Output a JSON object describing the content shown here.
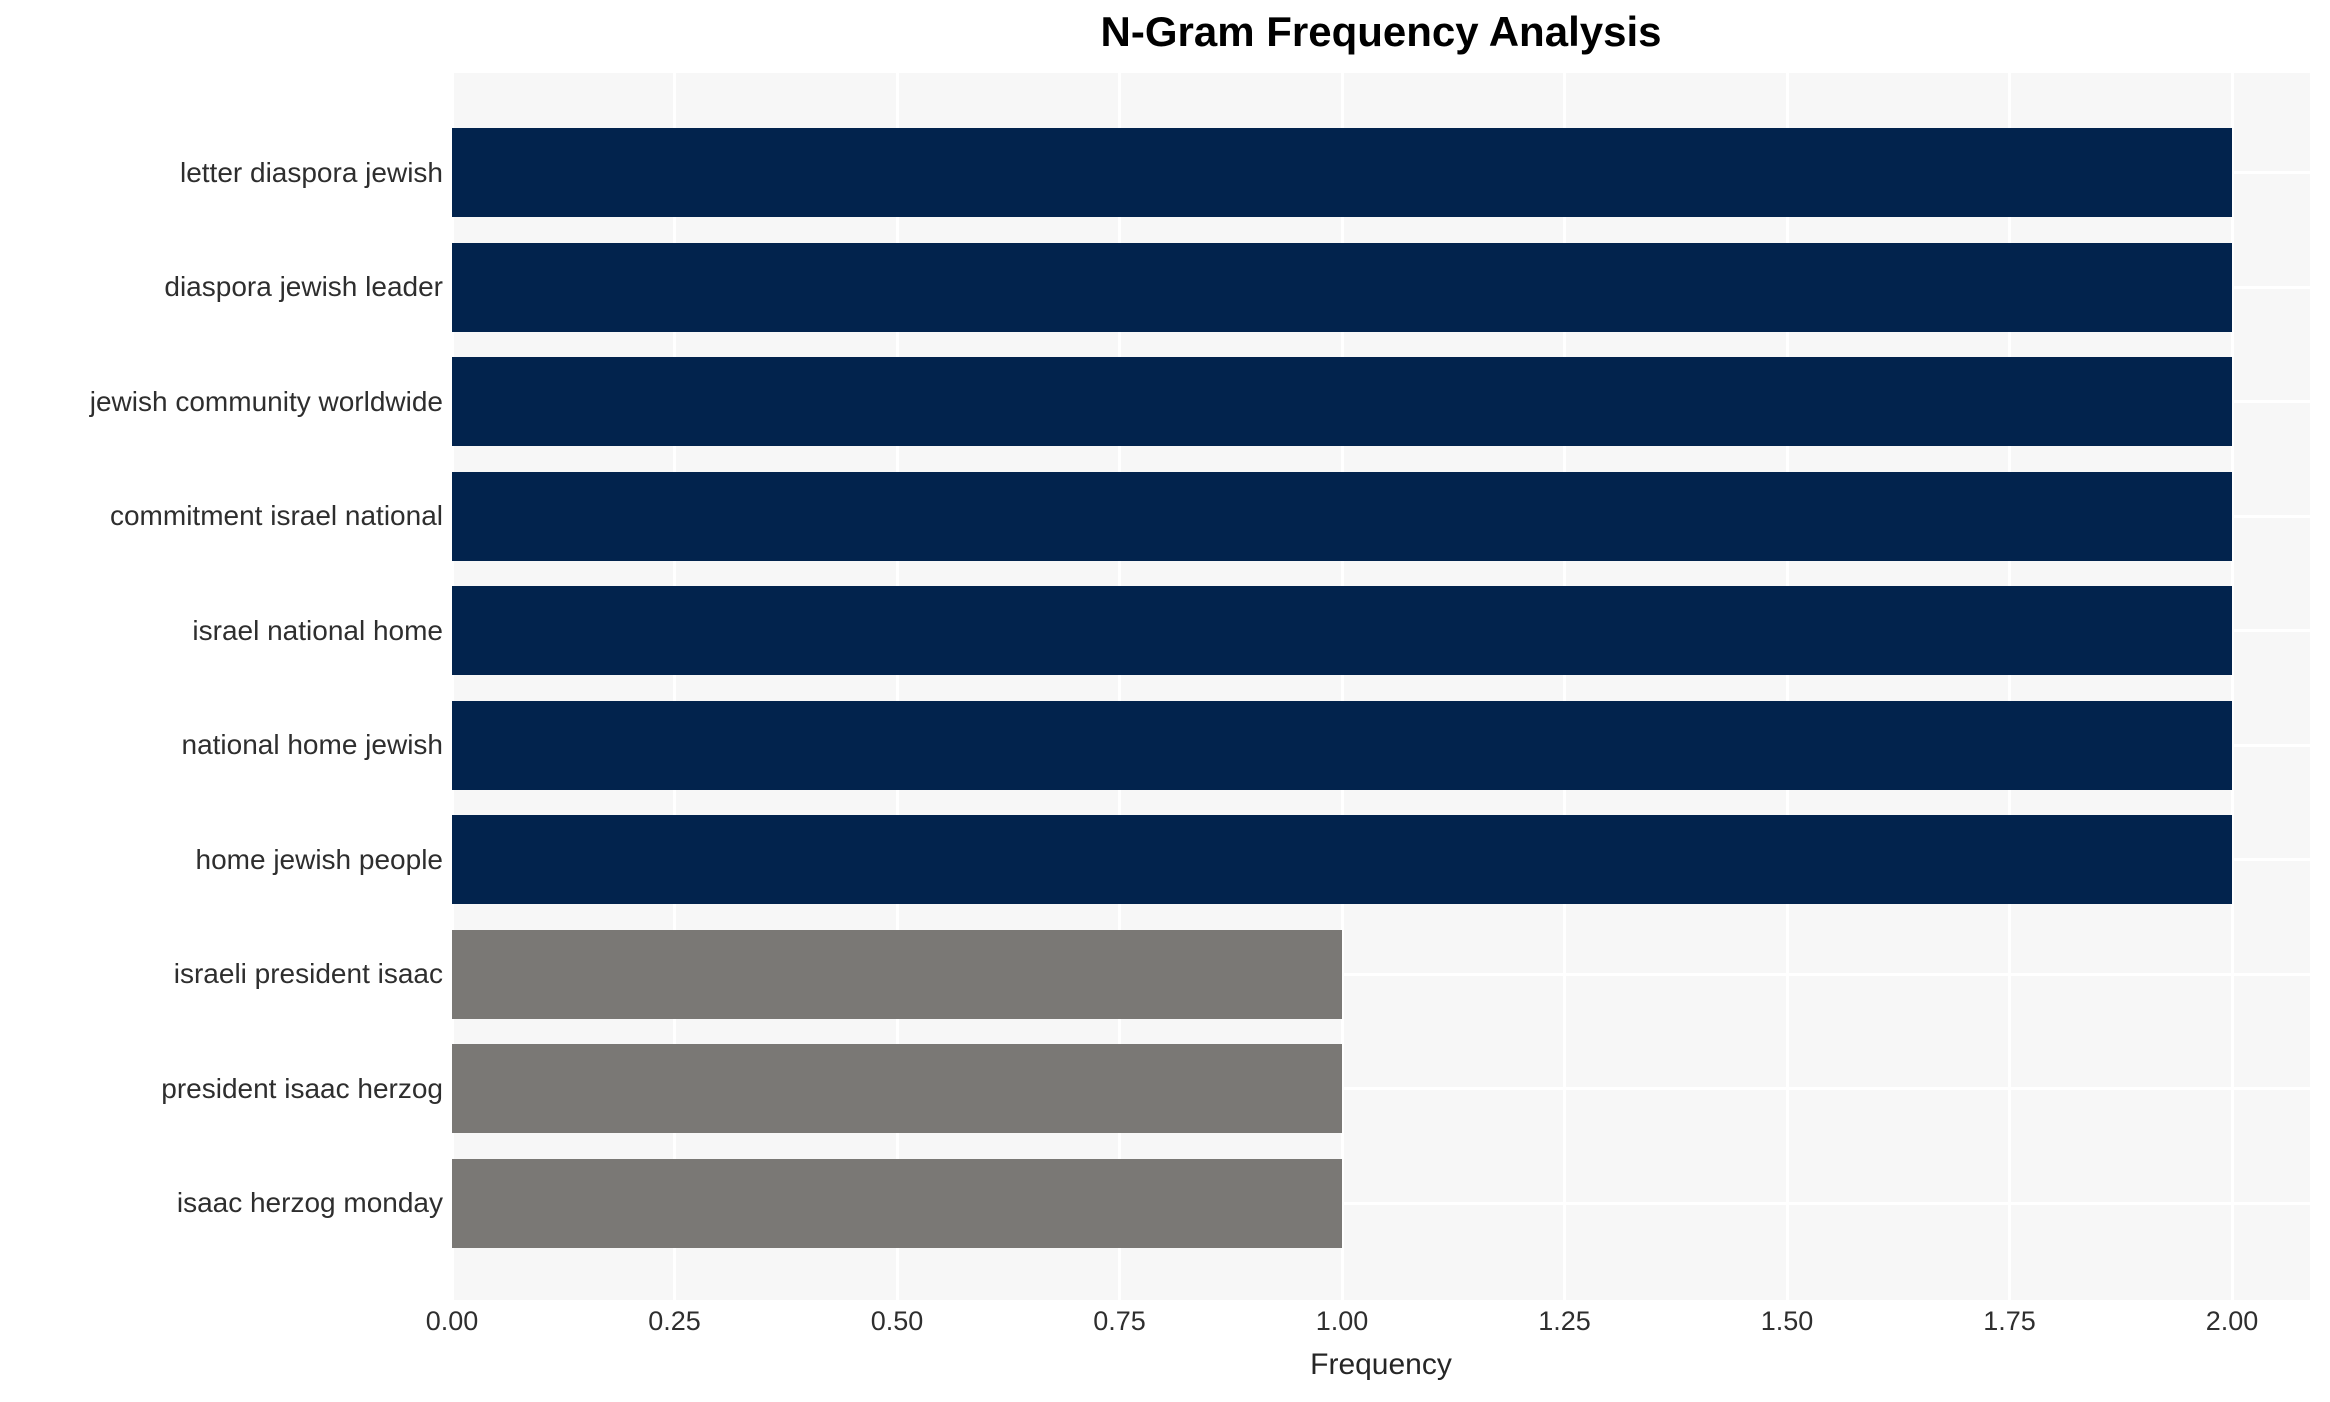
{
  "chart_data": {
    "type": "bar",
    "orientation": "horizontal",
    "title": "N-Gram Frequency Analysis",
    "xlabel": "Frequency",
    "ylabel": "",
    "xlim": [
      0,
      2.09
    ],
    "grid": true,
    "legend": false,
    "panel_background": "#f7f7f7",
    "gridline_color": "#ffffff",
    "categories": [
      "letter diaspora jewish",
      "diaspora jewish leader",
      "jewish community worldwide",
      "commitment israel national",
      "israel national home",
      "national home jewish",
      "home jewish people",
      "israeli president isaac",
      "president isaac herzog",
      "isaac herzog monday"
    ],
    "values": [
      2,
      2,
      2,
      2,
      2,
      2,
      2,
      1,
      1,
      1
    ],
    "bar_colors": [
      "#02234d",
      "#02234d",
      "#02234d",
      "#02234d",
      "#02234d",
      "#02234d",
      "#02234d",
      "#7a7875",
      "#7a7875",
      "#7a7875"
    ],
    "color_legend": {
      "high_frequency": "#02234d",
      "low_frequency": "#7a7875"
    },
    "xticks": [
      "0.00",
      "0.25",
      "0.50",
      "0.75",
      "1.00",
      "1.25",
      "1.50",
      "1.75",
      "2.00"
    ],
    "xtick_values": [
      0,
      0.25,
      0.5,
      0.75,
      1.0,
      1.25,
      1.5,
      1.75,
      2.0
    ]
  }
}
